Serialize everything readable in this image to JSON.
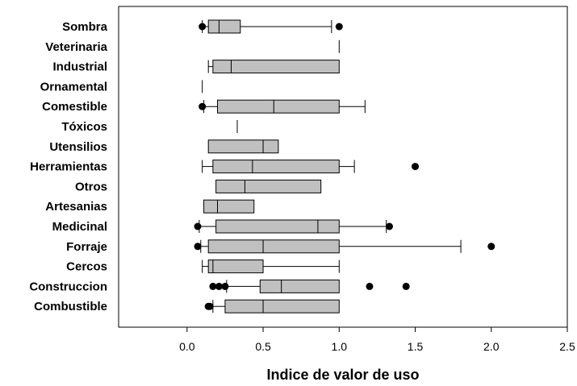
{
  "chart_data": {
    "type": "boxplot",
    "orientation": "horizontal",
    "xlabel": "Indice de valor de uso",
    "ylabel": "",
    "xlim": [
      -0.45,
      2.5
    ],
    "xticks": [
      0.0,
      0.5,
      1.0,
      1.5,
      2.0,
      2.5
    ],
    "xtick_labels": [
      "0.0",
      "0.5",
      "1.0",
      "1.5",
      "2.0",
      "2.5"
    ],
    "grid": false,
    "box_color": "#c0c0c0",
    "line_color": "#000000",
    "categories": [
      {
        "name": "Sombra",
        "whisker_low": 0.1,
        "q1": 0.14,
        "median": 0.21,
        "q3": 0.35,
        "whisker_high": 0.95,
        "outliers": [
          0.1,
          1.0
        ]
      },
      {
        "name": "Veterinaria",
        "whisker_low": 1.0,
        "q1": 1.0,
        "median": 1.0,
        "q3": 1.0,
        "whisker_high": 1.0,
        "outliers": []
      },
      {
        "name": "Industrial",
        "whisker_low": 0.14,
        "q1": 0.17,
        "median": 0.29,
        "q3": 1.0,
        "whisker_high": 1.0,
        "outliers": []
      },
      {
        "name": "Ornamental",
        "whisker_low": 0.1,
        "q1": 0.1,
        "median": 0.1,
        "q3": 0.1,
        "whisker_high": 0.1,
        "outliers": []
      },
      {
        "name": "Comestible",
        "whisker_low": 0.11,
        "q1": 0.2,
        "median": 0.57,
        "q3": 1.0,
        "whisker_high": 1.17,
        "outliers": [
          0.1
        ]
      },
      {
        "name": "Tóxicos",
        "whisker_low": 0.33,
        "q1": 0.33,
        "median": 0.33,
        "q3": 0.33,
        "whisker_high": 0.33,
        "outliers": []
      },
      {
        "name": "Utensilios",
        "whisker_low": 0.14,
        "q1": 0.14,
        "median": 0.5,
        "q3": 0.6,
        "whisker_high": 0.6,
        "outliers": []
      },
      {
        "name": "Herramientas",
        "whisker_low": 0.1,
        "q1": 0.17,
        "median": 0.43,
        "q3": 1.0,
        "whisker_high": 1.1,
        "outliers": [
          1.5
        ]
      },
      {
        "name": "Otros",
        "whisker_low": 0.19,
        "q1": 0.19,
        "median": 0.38,
        "q3": 0.88,
        "whisker_high": 0.88,
        "outliers": []
      },
      {
        "name": "Artesanias",
        "whisker_low": 0.11,
        "q1": 0.11,
        "median": 0.2,
        "q3": 0.44,
        "whisker_high": 0.44,
        "outliers": []
      },
      {
        "name": "Medicinal",
        "whisker_low": 0.08,
        "q1": 0.19,
        "median": 0.86,
        "q3": 1.0,
        "whisker_high": 1.31,
        "outliers": [
          0.07,
          1.33
        ]
      },
      {
        "name": "Forraje",
        "whisker_low": 0.09,
        "q1": 0.14,
        "median": 0.5,
        "q3": 1.0,
        "whisker_high": 1.8,
        "outliers": [
          0.07,
          2.0
        ]
      },
      {
        "name": "Cercos",
        "whisker_low": 0.1,
        "q1": 0.14,
        "median": 0.17,
        "q3": 0.5,
        "whisker_high": 1.0,
        "outliers": []
      },
      {
        "name": "Construccion",
        "whisker_low": 0.26,
        "q1": 0.48,
        "median": 0.62,
        "q3": 1.0,
        "whisker_high": 1.0,
        "outliers": [
          0.17,
          0.21,
          0.25,
          1.2,
          1.44
        ]
      },
      {
        "name": "Combustible",
        "whisker_low": 0.17,
        "q1": 0.25,
        "median": 0.5,
        "q3": 1.0,
        "whisker_high": 1.0,
        "outliers": [
          0.14,
          0.15
        ]
      }
    ]
  }
}
